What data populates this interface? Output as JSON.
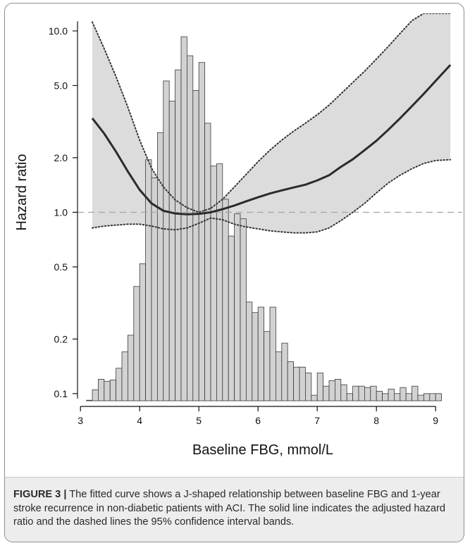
{
  "chart_data": {
    "type": "line",
    "xlabel": "Baseline FBG, mmol/L",
    "ylabel": "Hazard ratio",
    "xlim": [
      2.95,
      9.45
    ],
    "ylim": [
      0.085,
      12.5
    ],
    "y_scale": "log",
    "x_ticks": [
      3,
      4,
      5,
      6,
      7,
      8,
      9
    ],
    "x_tick_labels": [
      "3",
      "4",
      "5",
      "6",
      "7",
      "8",
      "9"
    ],
    "y_ticks": [
      0.1,
      0.2,
      0.5,
      1.0,
      2.0,
      5.0,
      10.0
    ],
    "y_tick_labels": [
      "0.1",
      "0.2",
      "0.5",
      "1.0",
      "2.0",
      "5.0",
      "10.0"
    ],
    "reference_line": {
      "y": 1.0,
      "style": "dashed",
      "color": "#a8a8a8"
    },
    "grid": false,
    "legend": "none",
    "colors": {
      "curve": "#2b2b2b",
      "band": "#dcdcdc",
      "histogram_fill": "#d2d2d2",
      "histogram_edge": "#3a3a3a"
    },
    "series": [
      {
        "role": "fitted",
        "style": "solid",
        "x": [
          3.2,
          3.4,
          3.6,
          3.8,
          4.0,
          4.2,
          4.4,
          4.6,
          4.8,
          5.0,
          5.2,
          5.4,
          5.6,
          5.8,
          6.0,
          6.2,
          6.4,
          6.6,
          6.8,
          7.0,
          7.2,
          7.4,
          7.6,
          7.8,
          8.0,
          8.2,
          8.4,
          8.6,
          8.8,
          9.0,
          9.25
        ],
        "y": [
          3.3,
          2.72,
          2.16,
          1.68,
          1.33,
          1.12,
          1.02,
          0.985,
          0.975,
          0.98,
          1.0,
          1.04,
          1.09,
          1.15,
          1.21,
          1.27,
          1.32,
          1.37,
          1.42,
          1.5,
          1.6,
          1.78,
          1.96,
          2.2,
          2.48,
          2.85,
          3.3,
          3.85,
          4.5,
          5.3,
          6.5
        ]
      },
      {
        "role": "ci_upper",
        "style": "dotted",
        "x": [
          3.2,
          3.4,
          3.6,
          3.8,
          4.0,
          4.2,
          4.4,
          4.6,
          4.8,
          5.0,
          5.2,
          5.4,
          5.6,
          5.8,
          6.0,
          6.2,
          6.4,
          6.6,
          6.8,
          7.0,
          7.2,
          7.4,
          7.6,
          7.8,
          8.0,
          8.2,
          8.4,
          8.6,
          8.8,
          9.0,
          9.25
        ],
        "y": [
          11.2,
          8.0,
          5.6,
          3.8,
          2.5,
          1.75,
          1.38,
          1.17,
          1.06,
          1.0,
          1.05,
          1.18,
          1.38,
          1.62,
          1.9,
          2.2,
          2.5,
          2.8,
          3.1,
          3.45,
          3.9,
          4.5,
          5.2,
          6.0,
          7.0,
          8.2,
          9.7,
          11.4,
          12.5,
          12.5,
          12.5
        ]
      },
      {
        "role": "ci_lower",
        "style": "dotted",
        "x": [
          3.2,
          3.4,
          3.6,
          3.8,
          4.0,
          4.2,
          4.4,
          4.6,
          4.8,
          5.0,
          5.2,
          5.4,
          5.6,
          5.8,
          6.0,
          6.2,
          6.4,
          6.6,
          6.8,
          7.0,
          7.2,
          7.4,
          7.6,
          7.8,
          8.0,
          8.2,
          8.4,
          8.6,
          8.8,
          9.0,
          9.25
        ],
        "y": [
          0.82,
          0.84,
          0.85,
          0.86,
          0.86,
          0.84,
          0.81,
          0.8,
          0.82,
          0.87,
          0.93,
          0.91,
          0.86,
          0.83,
          0.81,
          0.79,
          0.78,
          0.77,
          0.77,
          0.78,
          0.82,
          0.9,
          1.0,
          1.12,
          1.28,
          1.45,
          1.6,
          1.74,
          1.86,
          1.93,
          1.95
        ]
      }
    ],
    "histogram": {
      "bin_width": 0.1,
      "bin_starts": [
        3.1,
        3.2,
        3.3,
        3.4,
        3.5,
        3.6,
        3.7,
        3.8,
        3.9,
        4.0,
        4.1,
        4.2,
        4.3,
        4.4,
        4.5,
        4.6,
        4.7,
        4.8,
        4.9,
        5.0,
        5.1,
        5.2,
        5.3,
        5.4,
        5.5,
        5.6,
        5.7,
        5.8,
        5.9,
        6.0,
        6.1,
        6.2,
        6.3,
        6.4,
        6.5,
        6.6,
        6.7,
        6.8,
        6.9,
        7.0,
        7.1,
        7.2,
        7.3,
        7.4,
        7.5,
        7.6,
        7.7,
        7.8,
        7.9,
        8.0,
        8.1,
        8.2,
        8.3,
        8.4,
        8.5,
        8.6,
        8.7,
        8.8,
        8.9,
        9.0
      ],
      "heights_on_hr_scale": [
        0.092,
        0.105,
        0.12,
        0.117,
        0.119,
        0.138,
        0.17,
        0.21,
        0.39,
        0.52,
        1.95,
        1.55,
        2.75,
        5.3,
        4.1,
        6.1,
        9.3,
        7.3,
        4.7,
        6.7,
        3.1,
        1.8,
        1.85,
        1.18,
        0.74,
        0.98,
        0.92,
        0.32,
        0.28,
        0.3,
        0.22,
        0.3,
        0.17,
        0.19,
        0.15,
        0.14,
        0.14,
        0.13,
        0.098,
        0.13,
        0.11,
        0.118,
        0.12,
        0.112,
        0.1,
        0.11,
        0.11,
        0.108,
        0.11,
        0.103,
        0.1,
        0.106,
        0.1,
        0.108,
        0.1,
        0.11,
        0.098,
        0.1,
        0.1,
        0.1
      ]
    }
  },
  "caption": {
    "label": "FIGURE 3 |",
    "text": " The fitted curve shows a J-shaped relationship between baseline FBG and 1-year stroke recurrence in non-diabetic patients with ACI. The solid line indicates the adjusted hazard ratio and the dashed lines the 95% confidence interval bands."
  }
}
